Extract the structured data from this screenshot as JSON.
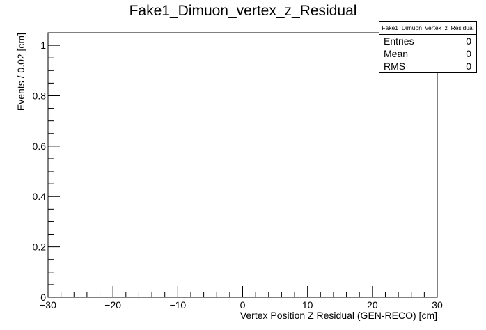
{
  "chart_data": {
    "type": "bar",
    "title": "Fake1_Dimuon_vertex_z_Residual",
    "xlabel": "Vertex Position Z Residual (GEN-RECO) [cm]",
    "ylabel": "Events / 0.02 [cm]",
    "xlim": [
      -30,
      30
    ],
    "ylim": [
      0,
      1.05
    ],
    "x_ticks": [
      -30,
      -20,
      -10,
      0,
      10,
      20,
      30
    ],
    "x_tick_labels": [
      "−30",
      "−20",
      "−10",
      "0",
      "10",
      "20",
      "30"
    ],
    "y_ticks": [
      0,
      0.2,
      0.4,
      0.6,
      0.8,
      1
    ],
    "y_tick_labels": [
      "0",
      "0.2",
      "0.4",
      "0.6",
      "0.8",
      "1"
    ],
    "grid": false,
    "series": [],
    "stats": {
      "name": "Fake1_Dimuon_vertex_z_Residual",
      "rows": [
        {
          "label": "Entries",
          "value": "0"
        },
        {
          "label": "Mean",
          "value": "0"
        },
        {
          "label": "RMS",
          "value": "0"
        }
      ]
    }
  }
}
